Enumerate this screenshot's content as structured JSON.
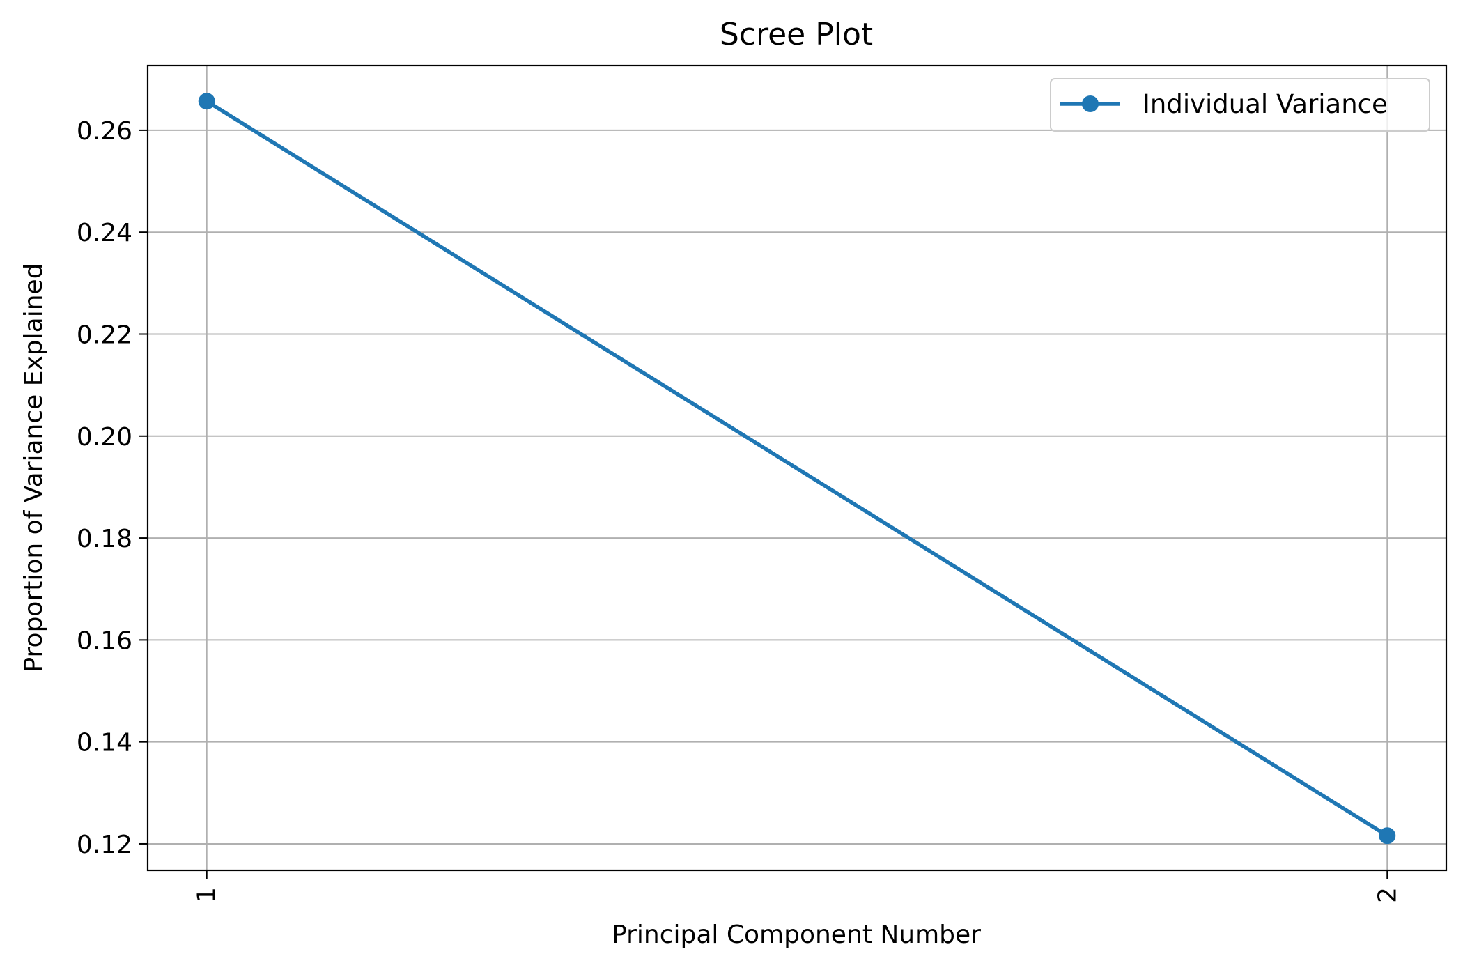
{
  "chart_data": {
    "type": "line",
    "title": "Scree Plot",
    "xlabel": "Principal Component Number",
    "ylabel": "Proportion of Variance Explained",
    "categories": [
      "1",
      "2"
    ],
    "x": [
      1,
      2
    ],
    "series": [
      {
        "name": "Individual Variance",
        "values": [
          0.2657,
          0.1216
        ],
        "color": "#1f77b4",
        "marker": "circle"
      }
    ],
    "xlim": [
      0.95,
      2.05
    ],
    "ylim": [
      0.1148,
      0.2727
    ],
    "yticks": [
      0.12,
      0.14,
      0.16,
      0.18,
      0.2,
      0.22,
      0.24,
      0.26
    ],
    "ytick_labels": [
      "0.12",
      "0.14",
      "0.16",
      "0.18",
      "0.20",
      "0.22",
      "0.24",
      "0.26"
    ],
    "xtick_rotation": "vertical",
    "grid": true,
    "legend_position": "top-right"
  }
}
